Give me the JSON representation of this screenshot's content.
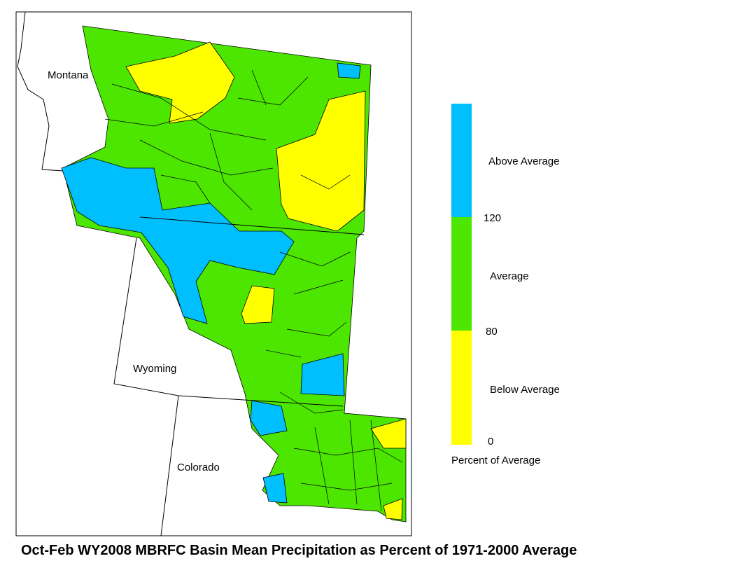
{
  "map": {
    "title": "Oct-Feb WY2008 MBRFC Basin Mean Precipitation as Percent of 1971-2000 Average",
    "state_labels": [
      "Montana",
      "Wyoming",
      "Colorado"
    ],
    "legend": {
      "classes": [
        {
          "label": "Above Average",
          "color": "#00bfff"
        },
        {
          "label": "Average",
          "color": "#4ce600"
        },
        {
          "label": "Below Average",
          "color": "#ffff00"
        }
      ],
      "breaks": [
        120,
        80,
        0
      ],
      "caption": "Percent of Average"
    }
  }
}
